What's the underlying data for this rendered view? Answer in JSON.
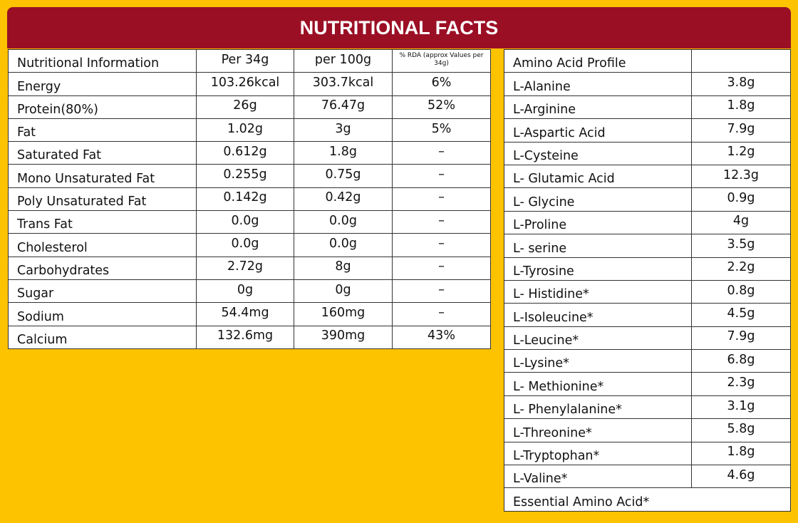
{
  "header": {
    "title": "NUTRITIONAL FACTS"
  },
  "nutrition_table": {
    "columns": [
      "Nutritional Information",
      "Per 34g",
      "per 100g",
      "% RDA (approx Values per 34g)"
    ],
    "rows": [
      [
        "Energy",
        "103.26kcal",
        "303.7kcal",
        "6%"
      ],
      [
        "Protein(80%)",
        "26g",
        "76.47g",
        "52%"
      ],
      [
        "Fat",
        "1.02g",
        "3g",
        "5%"
      ],
      [
        "Saturated Fat",
        "0.612g",
        "1.8g",
        "–"
      ],
      [
        "Mono Unsaturated Fat",
        "0.255g",
        "0.75g",
        "–"
      ],
      [
        "Poly Unsaturated Fat",
        "0.142g",
        "0.42g",
        "–"
      ],
      [
        "Trans Fat",
        "0.0g",
        "0.0g",
        "–"
      ],
      [
        "Cholesterol",
        "0.0g",
        "0.0g",
        "–"
      ],
      [
        "Carbohydrates",
        "2.72g",
        "8g",
        "–"
      ],
      [
        "Sugar",
        "0g",
        "0g",
        "–"
      ],
      [
        "Sodium",
        "54.4mg",
        "160mg",
        "–"
      ],
      [
        "Calcium",
        "132.6mg",
        "390mg",
        "43%"
      ]
    ]
  },
  "amino_table": {
    "header": "Amino Acid Profile",
    "rows": [
      [
        "L-Alanine",
        "3.8g"
      ],
      [
        "L-Arginine",
        "1.8g"
      ],
      [
        "L-Aspartic Acid",
        "7.9g"
      ],
      [
        "L-Cysteine",
        "1.2g"
      ],
      [
        "L- Glutamic Acid",
        "12.3g"
      ],
      [
        "L- Glycine",
        "0.9g"
      ],
      [
        "L-Proline",
        "4g"
      ],
      [
        "L- serine",
        "3.5g"
      ],
      [
        "L-Tyrosine",
        "2.2g"
      ],
      [
        "L- Histidine*",
        "0.8g"
      ],
      [
        "L-Isoleucine*",
        "4.5g"
      ],
      [
        "L-Leucine*",
        "7.9g"
      ],
      [
        "L-Lysine*",
        "6.8g"
      ],
      [
        "L- Methionine*",
        "2.3g"
      ],
      [
        "L- Phenylalanine*",
        "3.1g"
      ],
      [
        "L-Threonine*",
        "5.8g"
      ],
      [
        "L-Tryptophan*",
        "1.8g"
      ],
      [
        "L-Valine*",
        "4.6g"
      ]
    ],
    "footer": "Essential Amino Acid*"
  }
}
